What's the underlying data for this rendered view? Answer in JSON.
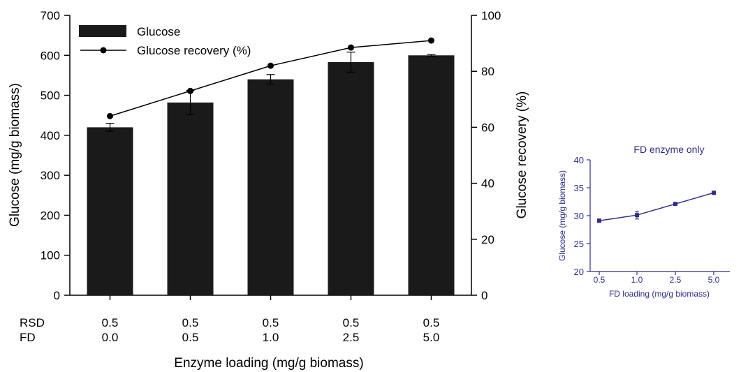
{
  "chart_data": [
    {
      "type": "bar+line",
      "title": "",
      "xlabel": "Enzyme loading (mg/g biomass)",
      "ylabel": "Glucose (mg/g biomass)",
      "ylabel_right": "Glucose recovery (%)",
      "ylim": [
        0,
        700
      ],
      "ylim_right": [
        0,
        100
      ],
      "yticks": [
        0,
        100,
        200,
        300,
        400,
        500,
        600,
        700
      ],
      "yticks_right": [
        0,
        20,
        40,
        60,
        80,
        100
      ],
      "category_rows": [
        {
          "label": "RSD",
          "values": [
            "0.5",
            "0.5",
            "0.5",
            "0.5",
            "0.5"
          ]
        },
        {
          "label": "FD",
          "values": [
            "0.0",
            "0.5",
            "1.0",
            "2.5",
            "5.0"
          ]
        }
      ],
      "series": [
        {
          "name": "Glucose",
          "kind": "bar",
          "axis": "left",
          "values": [
            420,
            482,
            540,
            583,
            600
          ],
          "errors": [
            10,
            30,
            12,
            25,
            2
          ],
          "color": "#1a1a1a"
        },
        {
          "name": "Glucose recovery (%)",
          "kind": "line",
          "axis": "right",
          "values": [
            64,
            73,
            82,
            88.5,
            91
          ],
          "color": "#000000"
        }
      ],
      "legend": "top-left"
    },
    {
      "type": "line",
      "title": "FD enzyme only",
      "xlabel": "FD loading (mg/g biomass)",
      "ylabel": "Glucose (mg/g biomass)",
      "categories": [
        "0.5",
        "1.0",
        "2.5",
        "5.0"
      ],
      "values": [
        29.1,
        30.1,
        32.1,
        34.1
      ],
      "errors": [
        0.3,
        0.7,
        0.2,
        0.2
      ],
      "ylim": [
        20,
        40
      ],
      "yticks": [
        20,
        25,
        30,
        35,
        40
      ],
      "color": "#2e2e8a"
    }
  ]
}
